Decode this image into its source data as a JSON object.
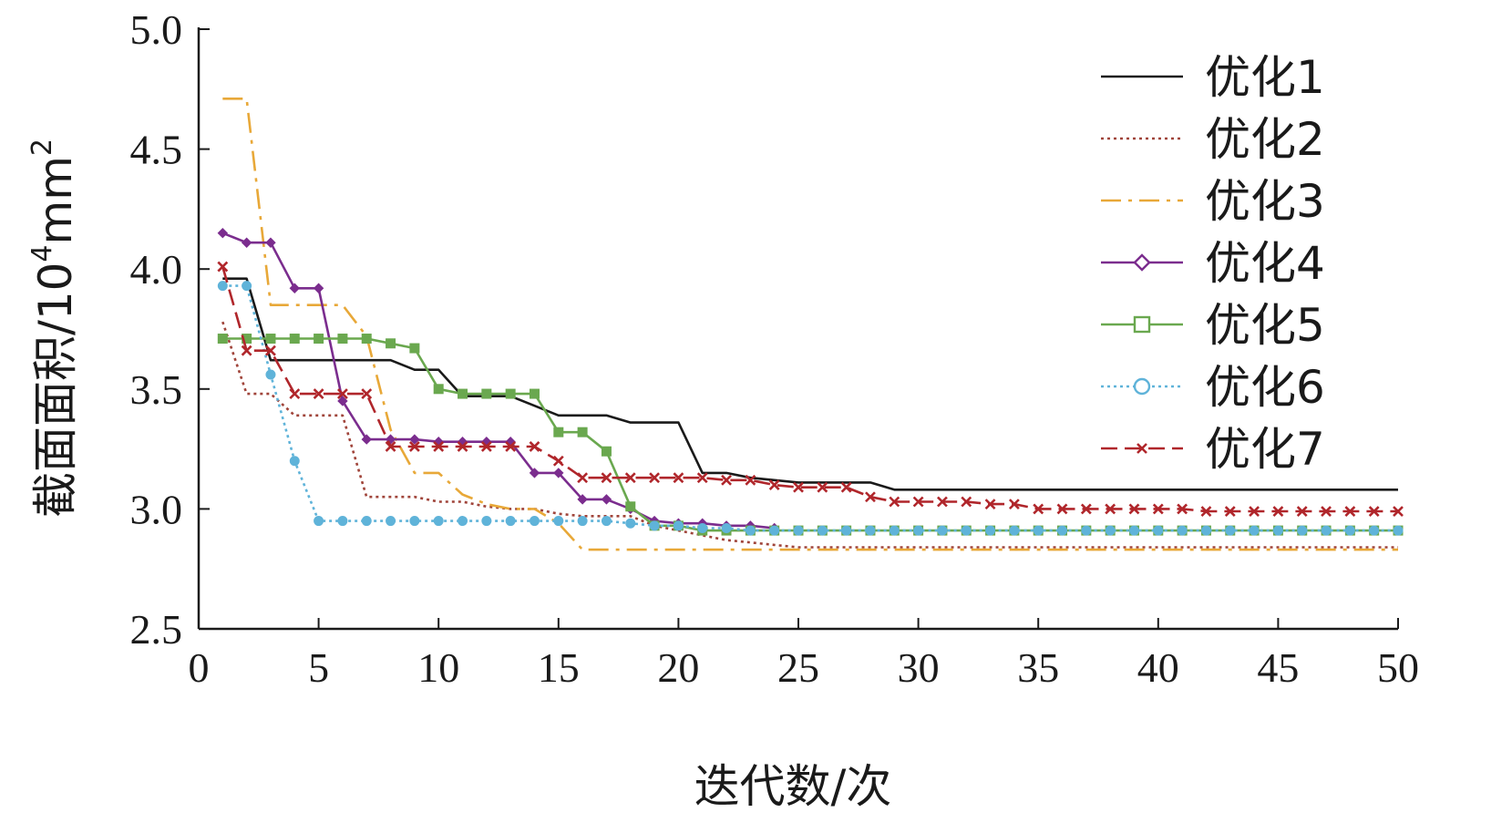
{
  "chart_data": {
    "type": "line",
    "title": "",
    "xlabel": "迭代数/次",
    "ylabel": {
      "text": "截面面积/10",
      "sup": "4",
      "rest": "mm",
      "sup2": "2"
    },
    "xlim": [
      0,
      50
    ],
    "ylim": [
      2.5,
      5.0
    ],
    "xticks": [
      "0",
      "5",
      "10",
      "15",
      "20",
      "25",
      "30",
      "35",
      "40",
      "45",
      "50"
    ],
    "yticks": [
      "2.5",
      "3.0",
      "3.5",
      "4.0",
      "4.5",
      "5.0"
    ],
    "legend_position": "top-right",
    "series": [
      {
        "name": "优化1",
        "color": "#1a1a1a",
        "dash": "",
        "marker": "none",
        "x": [
          1,
          2,
          3,
          4,
          5,
          6,
          7,
          8,
          9,
          10,
          11,
          12,
          13,
          14,
          15,
          16,
          17,
          18,
          19,
          20,
          21,
          22,
          23,
          24,
          25,
          26,
          27,
          28,
          29,
          30,
          31,
          32,
          33,
          34,
          35,
          36,
          37,
          38,
          39,
          40,
          41,
          42,
          43,
          44,
          45,
          46,
          47,
          48,
          49,
          50
        ],
        "y": [
          3.96,
          3.96,
          3.62,
          3.62,
          3.62,
          3.62,
          3.62,
          3.62,
          3.58,
          3.58,
          3.47,
          3.47,
          3.47,
          3.43,
          3.39,
          3.39,
          3.39,
          3.36,
          3.36,
          3.36,
          3.15,
          3.15,
          3.13,
          3.12,
          3.11,
          3.11,
          3.11,
          3.11,
          3.08,
          3.08,
          3.08,
          3.08,
          3.08,
          3.08,
          3.08,
          3.08,
          3.08,
          3.08,
          3.08,
          3.08,
          3.08,
          3.08,
          3.08,
          3.08,
          3.08,
          3.08,
          3.08,
          3.08,
          3.08,
          3.08
        ]
      },
      {
        "name": "优化2",
        "color": "#a0443a",
        "dash": "3,4",
        "marker": "none",
        "x": [
          1,
          2,
          3,
          4,
          5,
          6,
          7,
          8,
          9,
          10,
          11,
          12,
          13,
          14,
          15,
          16,
          17,
          18,
          19,
          20,
          21,
          22,
          23,
          24,
          25,
          26,
          27,
          28,
          29,
          30,
          31,
          32,
          33,
          34,
          35,
          36,
          37,
          38,
          39,
          40,
          41,
          42,
          43,
          44,
          45,
          46,
          47,
          48,
          49,
          50
        ],
        "y": [
          3.78,
          3.48,
          3.48,
          3.39,
          3.39,
          3.39,
          3.05,
          3.05,
          3.05,
          3.03,
          3.03,
          3.01,
          3.0,
          3.0,
          2.98,
          2.97,
          2.97,
          2.97,
          2.93,
          2.91,
          2.89,
          2.87,
          2.86,
          2.85,
          2.84,
          2.84,
          2.84,
          2.84,
          2.84,
          2.84,
          2.84,
          2.84,
          2.84,
          2.84,
          2.84,
          2.84,
          2.84,
          2.84,
          2.84,
          2.84,
          2.84,
          2.84,
          2.84,
          2.84,
          2.84,
          2.84,
          2.84,
          2.84,
          2.84,
          2.84
        ]
      },
      {
        "name": "优化3",
        "color": "#e8a838",
        "dash": "22,8,4,8",
        "marker": "none",
        "x": [
          1,
          2,
          3,
          4,
          5,
          6,
          7,
          8,
          9,
          10,
          11,
          12,
          13,
          14,
          15,
          16,
          17,
          18,
          19,
          20,
          21,
          22,
          23,
          24,
          25,
          26,
          27,
          28,
          29,
          30,
          31,
          32,
          33,
          34,
          35,
          36,
          37,
          38,
          39,
          40,
          41,
          42,
          43,
          44,
          45,
          46,
          47,
          48,
          49,
          50
        ],
        "y": [
          4.71,
          4.71,
          3.85,
          3.85,
          3.85,
          3.85,
          3.72,
          3.33,
          3.15,
          3.15,
          3.06,
          3.02,
          3.0,
          3.0,
          2.94,
          2.83,
          2.83,
          2.83,
          2.83,
          2.83,
          2.83,
          2.83,
          2.83,
          2.83,
          2.83,
          2.83,
          2.83,
          2.83,
          2.83,
          2.83,
          2.83,
          2.83,
          2.83,
          2.83,
          2.83,
          2.83,
          2.83,
          2.83,
          2.83,
          2.83,
          2.83,
          2.83,
          2.83,
          2.83,
          2.83,
          2.83,
          2.83,
          2.83,
          2.83,
          2.83
        ]
      },
      {
        "name": "优化4",
        "color": "#7b2d8e",
        "dash": "",
        "marker": "diamond",
        "x": [
          1,
          2,
          3,
          4,
          5,
          6,
          7,
          8,
          9,
          10,
          11,
          12,
          13,
          14,
          15,
          16,
          17,
          18,
          19,
          20,
          21,
          22,
          23,
          24
        ],
        "y": [
          4.15,
          4.11,
          4.11,
          3.92,
          3.92,
          3.45,
          3.29,
          3.29,
          3.29,
          3.28,
          3.28,
          3.28,
          3.28,
          3.15,
          3.15,
          3.04,
          3.04,
          3.0,
          2.95,
          2.94,
          2.94,
          2.93,
          2.93,
          2.92
        ]
      },
      {
        "name": "优化5",
        "color": "#6aa84f",
        "dash": "",
        "marker": "square",
        "x": [
          1,
          2,
          3,
          4,
          5,
          6,
          7,
          8,
          9,
          10,
          11,
          12,
          13,
          14,
          15,
          16,
          17,
          18,
          19,
          20,
          21,
          22,
          23,
          24,
          25,
          26,
          27,
          28,
          29,
          30,
          31,
          32,
          33,
          34,
          35,
          36,
          37,
          38,
          39,
          40,
          41,
          42,
          43,
          44,
          45,
          46,
          47,
          48,
          49,
          50
        ],
        "y": [
          3.71,
          3.71,
          3.71,
          3.71,
          3.71,
          3.71,
          3.71,
          3.69,
          3.67,
          3.5,
          3.48,
          3.48,
          3.48,
          3.48,
          3.32,
          3.32,
          3.24,
          3.01,
          2.93,
          2.93,
          2.91,
          2.91,
          2.91,
          2.91,
          2.91,
          2.91,
          2.91,
          2.91,
          2.91,
          2.91,
          2.91,
          2.91,
          2.91,
          2.91,
          2.91,
          2.91,
          2.91,
          2.91,
          2.91,
          2.91,
          2.91,
          2.91,
          2.91,
          2.91,
          2.91,
          2.91,
          2.91,
          2.91,
          2.91,
          2.91
        ]
      },
      {
        "name": "优化6",
        "color": "#5fb3d9",
        "dash": "3,4",
        "marker": "circle",
        "x": [
          1,
          2,
          3,
          4,
          5,
          6,
          7,
          8,
          9,
          10,
          11,
          12,
          13,
          14,
          15,
          16,
          17,
          18,
          19,
          20,
          21,
          22,
          23,
          24,
          25,
          26,
          27,
          28,
          29,
          30,
          31,
          32,
          33,
          34,
          35,
          36,
          37,
          38,
          39,
          40,
          41,
          42,
          43,
          44,
          45,
          46,
          47,
          48,
          49,
          50
        ],
        "y": [
          3.93,
          3.93,
          3.56,
          3.2,
          2.95,
          2.95,
          2.95,
          2.95,
          2.95,
          2.95,
          2.95,
          2.95,
          2.95,
          2.95,
          2.95,
          2.95,
          2.95,
          2.94,
          2.93,
          2.93,
          2.92,
          2.92,
          2.91,
          2.91,
          2.91,
          2.91,
          2.91,
          2.91,
          2.91,
          2.91,
          2.91,
          2.91,
          2.91,
          2.91,
          2.91,
          2.91,
          2.91,
          2.91,
          2.91,
          2.91,
          2.91,
          2.91,
          2.91,
          2.91,
          2.91,
          2.91,
          2.91,
          2.91,
          2.91,
          2.91
        ]
      },
      {
        "name": "优化7",
        "color": "#b0262b",
        "dash": "18,8",
        "marker": "x",
        "x": [
          1,
          2,
          3,
          4,
          5,
          6,
          7,
          8,
          9,
          10,
          11,
          12,
          13,
          14,
          15,
          16,
          17,
          18,
          19,
          20,
          21,
          22,
          23,
          24,
          25,
          26,
          27,
          28,
          29,
          30,
          31,
          32,
          33,
          34,
          35,
          36,
          37,
          38,
          39,
          40,
          41,
          42,
          43,
          44,
          45,
          46,
          47,
          48,
          49,
          50
        ],
        "y": [
          4.01,
          3.66,
          3.66,
          3.48,
          3.48,
          3.48,
          3.48,
          3.26,
          3.26,
          3.26,
          3.26,
          3.26,
          3.26,
          3.26,
          3.2,
          3.13,
          3.13,
          3.13,
          3.13,
          3.13,
          3.13,
          3.12,
          3.12,
          3.1,
          3.09,
          3.09,
          3.09,
          3.05,
          3.03,
          3.03,
          3.03,
          3.03,
          3.02,
          3.02,
          3.0,
          3.0,
          3.0,
          3.0,
          3.0,
          3.0,
          3.0,
          2.99,
          2.99,
          2.99,
          2.99,
          2.99,
          2.99,
          2.99,
          2.99,
          2.99
        ]
      }
    ]
  }
}
